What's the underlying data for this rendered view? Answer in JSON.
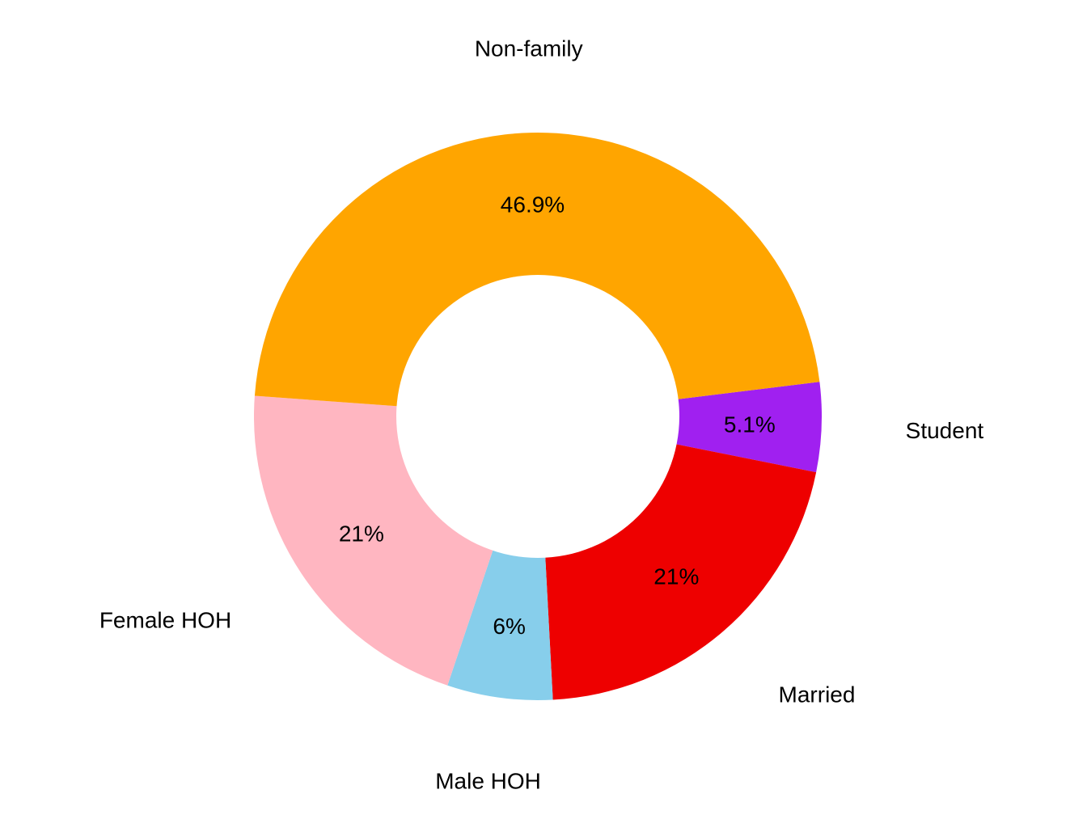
{
  "chart_data": {
    "type": "pie",
    "donut": true,
    "categories": [
      "Student",
      "Married",
      "Male HOH",
      "Female HOH",
      "Non-family"
    ],
    "values": [
      5.1,
      21,
      6,
      21,
      46.9
    ],
    "value_labels": [
      "5.1%",
      "21%",
      "6%",
      "21%",
      "46.9%"
    ],
    "colors": [
      "#A020F0",
      "#EE0000",
      "#87CEEB",
      "#FFB6C1",
      "#FFA500"
    ],
    "legend": "none"
  }
}
